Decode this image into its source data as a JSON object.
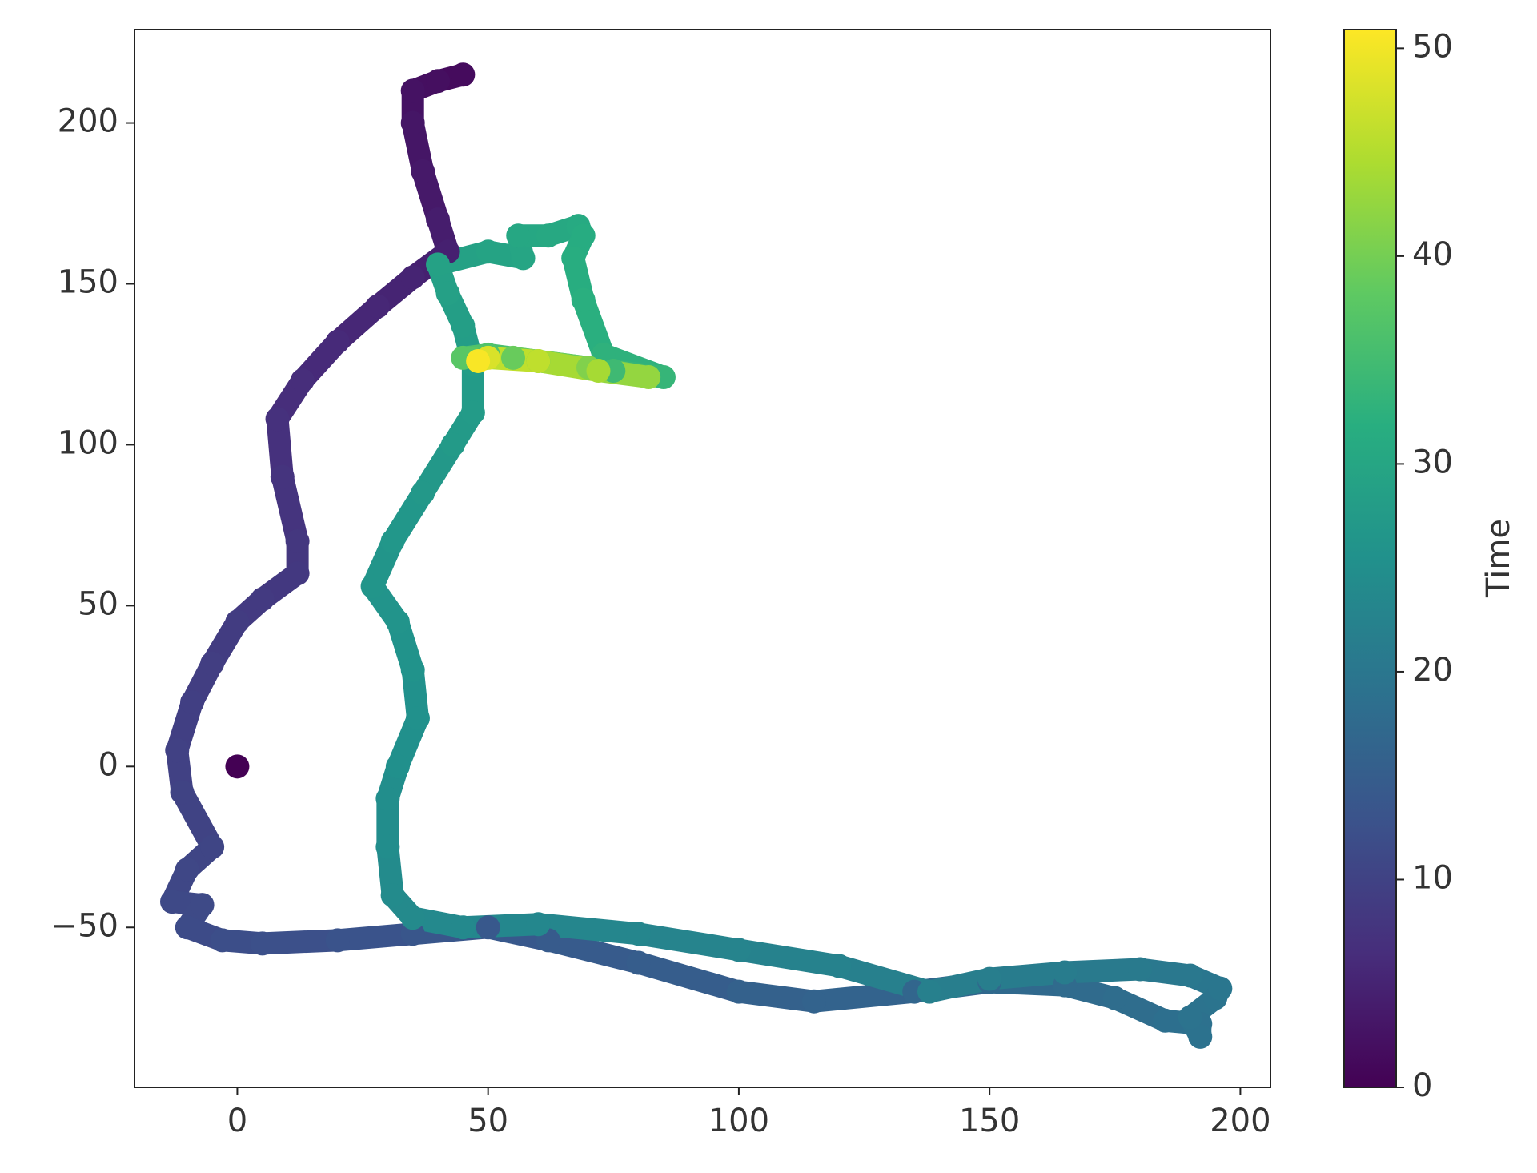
{
  "chart_data": {
    "type": "scatter",
    "colormap": "viridis",
    "xlim": [
      -20.5,
      206
    ],
    "ylim": [
      -99.7,
      229
    ],
    "xticks": [
      0,
      50,
      100,
      150,
      200
    ],
    "yticks": [
      {
        "value": -50,
        "label": "−50"
      },
      0,
      50,
      100,
      150,
      200
    ],
    "series": [
      {
        "x": [
          0
        ],
        "y": [
          0
        ],
        "c": [
          0
        ]
      },
      {
        "x": [
          45,
          40,
          35,
          35,
          37,
          40,
          42,
          35,
          28,
          20,
          13,
          8,
          9,
          12,
          12,
          5,
          0,
          -5,
          -9,
          -12,
          -11,
          -5,
          -10,
          -13,
          -7,
          -10,
          -3,
          5,
          20,
          35,
          50,
          62,
          80,
          100,
          115,
          135,
          150,
          165,
          175,
          185,
          192,
          192,
          190,
          195,
          196,
          190,
          180,
          165,
          150,
          138,
          120,
          100,
          80,
          60,
          45,
          35,
          31,
          30,
          30,
          32,
          36,
          35,
          32,
          27,
          31,
          37,
          43,
          47,
          47,
          45,
          42,
          40,
          50,
          57,
          56,
          62,
          68,
          69,
          67,
          69,
          73,
          85,
          75,
          60,
          50,
          45,
          55,
          70,
          82,
          72,
          60,
          50,
          48
        ],
        "y": [
          215,
          213,
          210,
          200,
          185,
          170,
          160,
          152,
          143,
          132,
          120,
          108,
          90,
          70,
          60,
          52,
          45,
          32,
          20,
          5,
          -8,
          -25,
          -32,
          -42,
          -43,
          -50,
          -54,
          -55,
          -54,
          -52,
          -50,
          -54,
          -61,
          -70,
          -73,
          -70,
          -67,
          -68,
          -72,
          -79,
          -80,
          -84,
          -78,
          -72,
          -69,
          -65,
          -63,
          -64,
          -66,
          -70,
          -62,
          -57,
          -52,
          -49,
          -50,
          -47,
          -40,
          -25,
          -10,
          0,
          15,
          30,
          45,
          56,
          70,
          85,
          100,
          110,
          125,
          137,
          147,
          156,
          160,
          158,
          165,
          165,
          168,
          165,
          158,
          145,
          128,
          121,
          123,
          126,
          128,
          127,
          127,
          124,
          121,
          123,
          126,
          127,
          126
        ],
        "c": [
          1.5,
          2,
          2.5,
          3,
          3.5,
          4,
          4.5,
          5,
          5.5,
          6,
          6.5,
          7,
          7.5,
          8,
          8.3,
          8.6,
          8.9,
          9.2,
          9.5,
          9.8,
          10.1,
          10.5,
          10.8,
          11.1,
          11.3,
          11.6,
          12,
          12.4,
          13,
          13.5,
          14,
          14.5,
          15,
          15.7,
          16.2,
          16.7,
          17.2,
          17.6,
          18,
          18.5,
          18.8,
          19,
          19.2,
          19.6,
          20,
          20.4,
          20.8,
          21.2,
          21.6,
          22,
          22.4,
          22.8,
          23.2,
          23.5,
          23.8,
          24,
          24.3,
          24.6,
          24.9,
          25.2,
          25.5,
          25.8,
          26.1,
          26.4,
          26.7,
          27,
          27.4,
          27.7,
          28,
          28.4,
          28.7,
          29,
          29.5,
          29.8,
          30.2,
          30.6,
          31,
          31.3,
          31.6,
          32,
          32.6,
          33.5,
          34.5,
          35.5,
          36.5,
          37.5,
          39,
          41,
          42.5,
          44,
          46,
          48,
          50.5
        ]
      }
    ],
    "colorbar": {
      "label": "Time",
      "lim": [
        0,
        50.9
      ],
      "ticks": [
        0,
        10,
        20,
        30,
        40,
        50
      ]
    }
  }
}
